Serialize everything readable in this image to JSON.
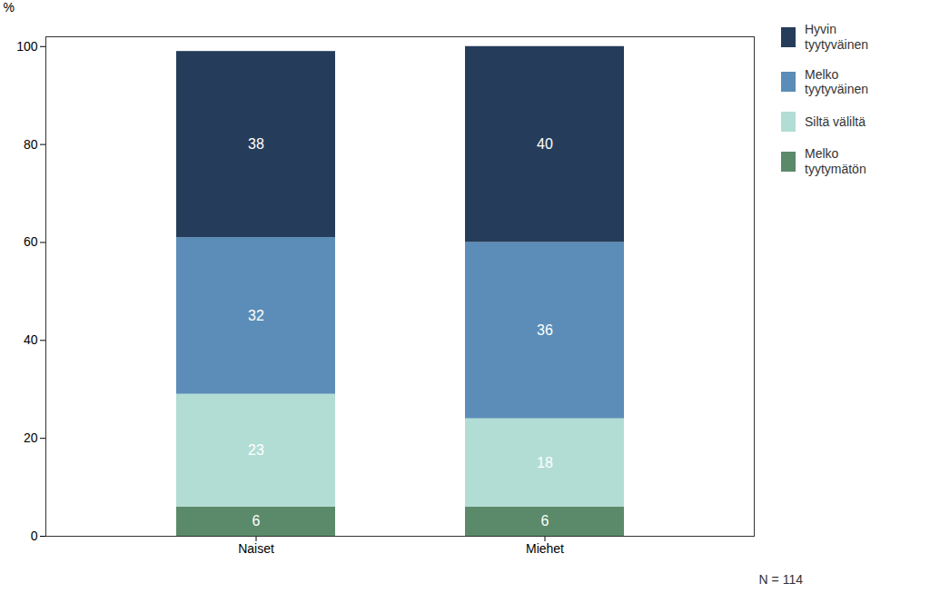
{
  "chart_data": {
    "type": "bar",
    "stacked": true,
    "data_labels": true,
    "grid": false,
    "legend": "right",
    "categories": [
      "Naiset",
      "Miehet"
    ],
    "series": [
      {
        "name": "Melko\ntyytymätön",
        "values": [
          6,
          6
        ],
        "color": "#5a8a6a"
      },
      {
        "name": "Siltä väliltä",
        "values": [
          23,
          18
        ],
        "color": "#b2ddd4"
      },
      {
        "name": "Melko\ntyytyväinen",
        "values": [
          32,
          36
        ],
        "color": "#5b8db8"
      },
      {
        "name": "Hyvin\ntyytyväinen",
        "values": [
          38,
          40
        ],
        "color": "#253d5b"
      }
    ],
    "ylabel": "%",
    "ylim": [
      0,
      102
    ],
    "yticks": [
      0,
      20,
      40,
      60,
      80,
      100
    ],
    "annotations": [
      "N = 114"
    ]
  }
}
